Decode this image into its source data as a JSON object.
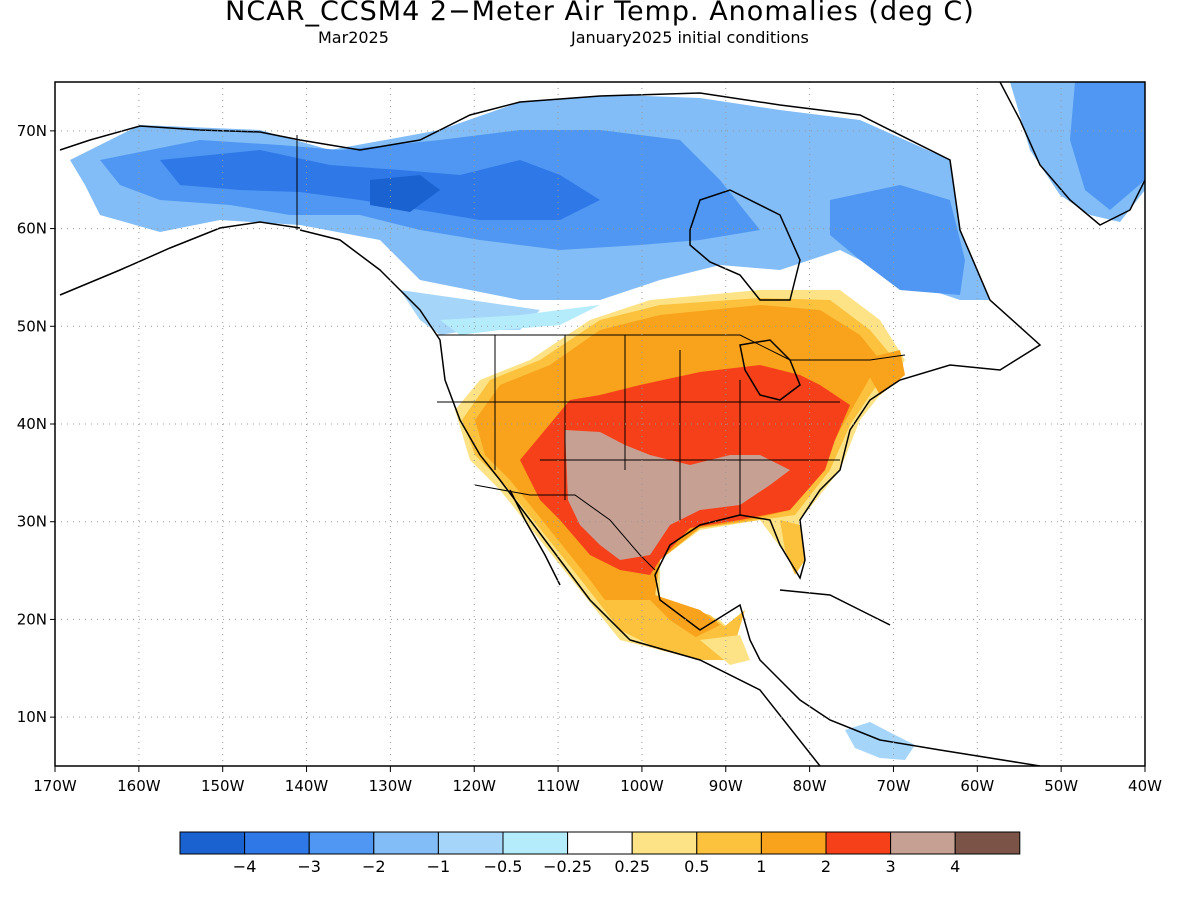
{
  "title": "NCAR_CCSM4 2−Meter Air Temp. Anomalies (deg C)",
  "subtitle_left": "Mar2025",
  "subtitle_right": "January2025 initial conditions",
  "map": {
    "lon_range": [
      -170,
      -40
    ],
    "lat_range": [
      5,
      75
    ],
    "grid": true,
    "lat_ticks": [
      {
        "value": 70,
        "label": "70N"
      },
      {
        "value": 60,
        "label": "60N"
      },
      {
        "value": 50,
        "label": "50N"
      },
      {
        "value": 40,
        "label": "40N"
      },
      {
        "value": 30,
        "label": "30N"
      },
      {
        "value": 20,
        "label": "20N"
      },
      {
        "value": 10,
        "label": "10N"
      }
    ],
    "lon_ticks": [
      {
        "value": -170,
        "label": "170W"
      },
      {
        "value": -160,
        "label": "160W"
      },
      {
        "value": -150,
        "label": "150W"
      },
      {
        "value": -140,
        "label": "140W"
      },
      {
        "value": -130,
        "label": "130W"
      },
      {
        "value": -120,
        "label": "120W"
      },
      {
        "value": -110,
        "label": "110W"
      },
      {
        "value": -100,
        "label": "100W"
      },
      {
        "value": -90,
        "label": "90W"
      },
      {
        "value": -80,
        "label": "80W"
      },
      {
        "value": -70,
        "label": "70W"
      },
      {
        "value": -60,
        "label": "60W"
      },
      {
        "value": -50,
        "label": "50W"
      },
      {
        "value": -40,
        "label": "40W"
      }
    ]
  },
  "colors": {
    "ocean": "#ffffff",
    "cold_4": "#1a62d0",
    "cold_3": "#2f78e8",
    "cold_2": "#4f97f2",
    "cold_1": "#82bdf7",
    "cold_05": "#a6d5fa",
    "cold_025": "#b4ecfb",
    "neutral": "#ffffff",
    "warm_025": "#fde385",
    "warm_05": "#fcc13d",
    "warm_1": "#f9a21b",
    "warm_2": "#f6401a",
    "warm_3": "#c7a094",
    "warm_4": "#7c5447"
  },
  "colorbar": {
    "swatches": [
      "#1a62d0",
      "#2f78e8",
      "#4f97f2",
      "#82bdf7",
      "#a6d5fa",
      "#b4ecfb",
      "#ffffff",
      "#fde385",
      "#fcc13d",
      "#f9a21b",
      "#f6401a",
      "#c7a094",
      "#7c5447"
    ],
    "labels": [
      "−4",
      "−3",
      "−2",
      "−1",
      "−0.5",
      "−0.25",
      "0.25",
      "0.5",
      "1",
      "2",
      "3",
      "4"
    ]
  }
}
